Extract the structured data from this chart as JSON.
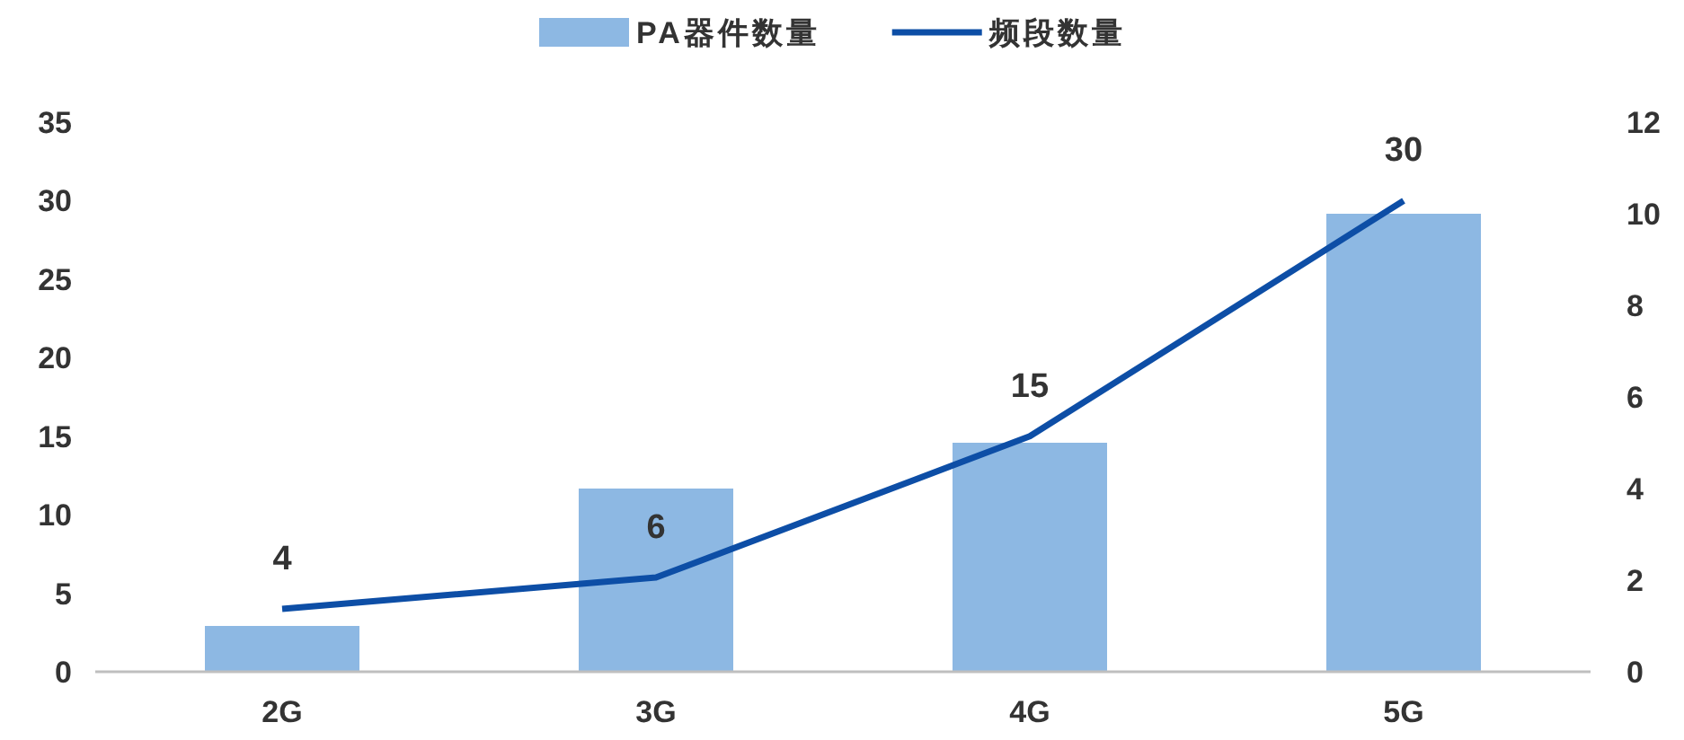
{
  "chart_data": {
    "type": "bar",
    "categories": [
      "2G",
      "3G",
      "4G",
      "5G"
    ],
    "series": [
      {
        "name": "PA器件数量",
        "axis": "y2",
        "color": "#8db8e3",
        "values": [
          1,
          4,
          5,
          10
        ]
      },
      {
        "name": "频段数量",
        "type": "line",
        "color": "#0d4ea6",
        "values": [
          4,
          6,
          15,
          30
        ],
        "value_labels": [
          "4",
          "6",
          "15",
          "30"
        ]
      }
    ],
    "ylim": [
      0,
      35
    ],
    "yticks": [
      0,
      5,
      10,
      15,
      20,
      25,
      30,
      35
    ],
    "y2lim": [
      0,
      12
    ],
    "y2ticks": [
      0,
      2,
      4,
      6,
      8,
      10,
      12
    ],
    "legend": "top",
    "grid": false
  }
}
